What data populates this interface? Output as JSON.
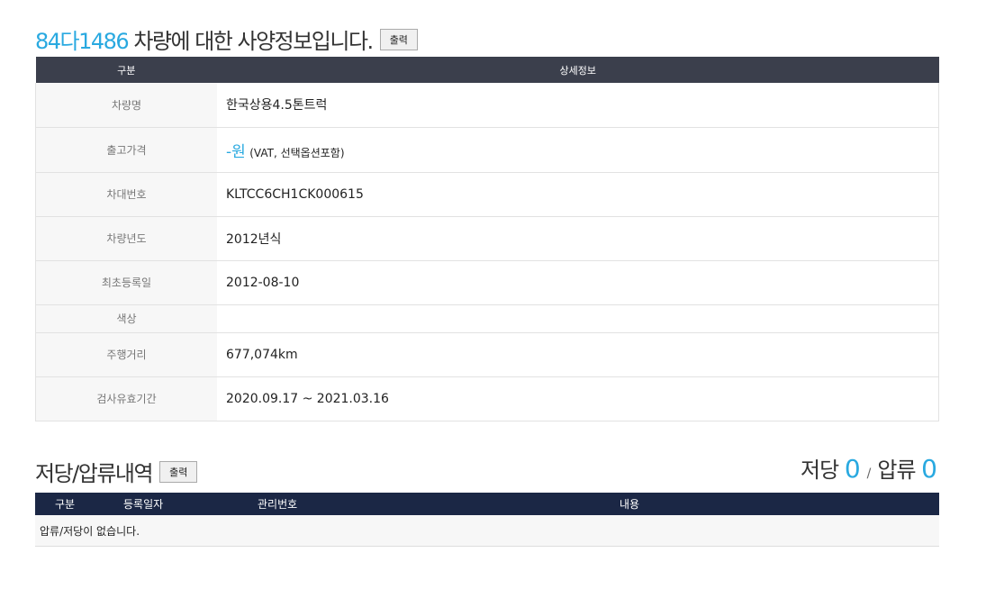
{
  "spec": {
    "plate": "84다1486",
    "title_suffix": " 차량에 대한 사양정보입니다.",
    "print_label": "출력",
    "headers": [
      "구분",
      "상세정보"
    ],
    "rows": [
      {
        "label": "차량명",
        "value": "한국상용4.5톤트럭"
      },
      {
        "label": "출고가격",
        "value": "-원",
        "note": "(VAT, 선택옵션포함)"
      },
      {
        "label": "차대번호",
        "value": "KLTCC6CH1CK000615"
      },
      {
        "label": "차량년도",
        "value": "2012년식"
      },
      {
        "label": "최초등록일",
        "value": "2012-08-10"
      },
      {
        "label": "색상",
        "value": ""
      },
      {
        "label": "주행거리",
        "value": "677,074km"
      },
      {
        "label": "검사유효기간",
        "value": "2020.09.17 ~ 2021.03.16"
      }
    ]
  },
  "lien": {
    "title": "저당/압류내역",
    "print_label": "출력",
    "mortgage_label": "저당",
    "mortgage_count": "0",
    "separator": "/",
    "seizure_label": "압류",
    "seizure_count": "0",
    "headers": [
      "구분",
      "등록일자",
      "관리번호",
      "내용"
    ],
    "empty": "압류/저당이 없습니다."
  },
  "colors": {
    "accent": "#29a9e0",
    "header1": "#3b3f4c",
    "header2": "#1b2745"
  }
}
